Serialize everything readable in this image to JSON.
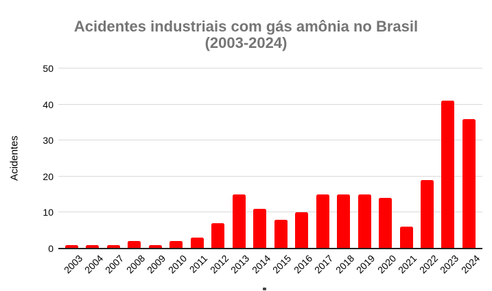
{
  "title": {
    "line1": "Acidentes industriais com gás amônia no Brasil",
    "line2": "(2003-2024)"
  },
  "chart_data": {
    "type": "bar",
    "title": "Acidentes industriais com gás amônia no Brasil (2003-2024)",
    "xlabel": "",
    "ylabel": "Acidentes",
    "categories": [
      "2003",
      "2004",
      "2007",
      "2008",
      "2009",
      "2010",
      "2011",
      "2012",
      "2013",
      "2014",
      "2015",
      "2016",
      "2017",
      "2018",
      "2019",
      "2020",
      "2021",
      "2022",
      "2023",
      "2024"
    ],
    "values": [
      1,
      1,
      1,
      2,
      1,
      2,
      3,
      7,
      15,
      11,
      8,
      10,
      15,
      15,
      15,
      14,
      6,
      19,
      41,
      36
    ],
    "ylim": [
      0,
      50
    ],
    "yticks": [
      0,
      10,
      20,
      30,
      40,
      50
    ],
    "grid": true,
    "legend": false
  },
  "colors": {
    "title_text": "#757575",
    "bar": "#ff0000",
    "gridline": "#d9d9d9",
    "axis_line": "#212121",
    "tick_text": "#000000",
    "background": "#ffffff"
  }
}
